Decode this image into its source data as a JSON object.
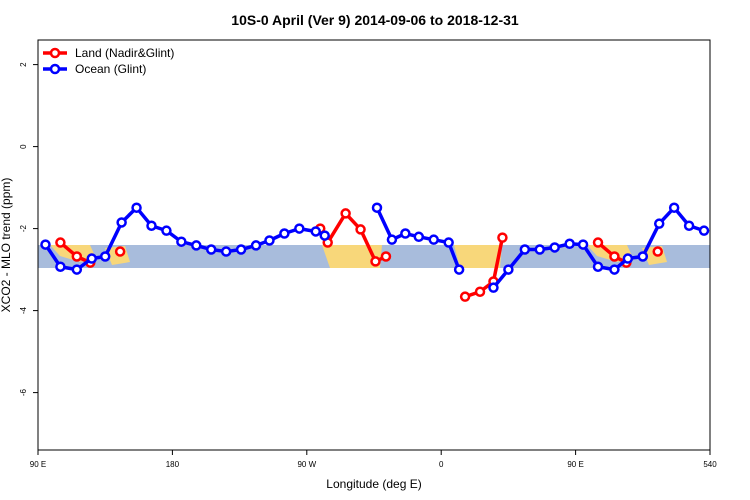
{
  "chart_data": {
    "type": "line",
    "title": "10S-0 April (Ver 9)   2014-09-06 to 2018-12-31",
    "xlabel": "Longitude (deg E)",
    "ylabel": "XCO2 - MLO trend (ppm)",
    "xlim": [
      90,
      540
    ],
    "xticks": [
      {
        "value": 90,
        "label": "90 E"
      },
      180,
      {
        "value": 270,
        "label": "90 W"
      },
      {
        "value": 360,
        "label": "0"
      },
      {
        "value": 450,
        "label": "90 E"
      },
      540
    ],
    "ylim": [
      -7.4,
      2.6
    ],
    "yticks": [
      2,
      0,
      -2,
      -4,
      -6
    ],
    "legend": "top-left",
    "series": [
      {
        "name": "Land (Nadir&Glint)",
        "color": "#ff0000",
        "x": [
          105,
          116,
          125,
          null,
          145,
          null,
          279,
          284,
          296,
          306,
          316,
          323,
          null,
          376,
          386,
          395,
          401,
          null,
          465,
          476,
          484,
          null,
          505
        ],
        "values": [
          -2.34,
          -2.68,
          -2.83,
          null,
          -2.56,
          null,
          -2.0,
          -2.34,
          -1.63,
          -2.02,
          -2.8,
          -2.68,
          null,
          -3.66,
          -3.54,
          -3.29,
          -2.22,
          null,
          -2.34,
          -2.68,
          -2.83,
          null,
          -2.56
        ]
      },
      {
        "name": "Ocean (Glint)",
        "color": "#0000ff",
        "x": [
          95,
          105,
          116,
          126,
          135,
          146,
          156,
          166,
          176,
          186,
          196,
          206,
          216,
          226,
          236,
          245,
          255,
          265,
          276,
          282,
          null,
          317,
          327,
          336,
          345,
          355,
          365,
          372,
          null,
          395,
          405,
          416,
          426,
          436,
          446,
          455,
          465,
          476,
          485,
          495,
          506,
          516,
          526,
          536
        ],
        "values": [
          -2.39,
          -2.93,
          -3.0,
          -2.73,
          -2.68,
          -1.85,
          -1.49,
          -1.93,
          -2.05,
          -2.32,
          -2.41,
          -2.51,
          -2.56,
          -2.51,
          -2.41,
          -2.29,
          -2.12,
          -2.0,
          -2.07,
          -2.17,
          null,
          -1.49,
          -2.27,
          -2.12,
          -2.2,
          -2.27,
          -2.34,
          -3.0,
          null,
          -3.44,
          -3.0,
          -2.51,
          -2.51,
          -2.46,
          -2.37,
          -2.39,
          -2.93,
          -3.0,
          -2.73,
          -2.68,
          -1.88,
          -1.49,
          -1.93,
          -2.05
        ]
      }
    ]
  }
}
